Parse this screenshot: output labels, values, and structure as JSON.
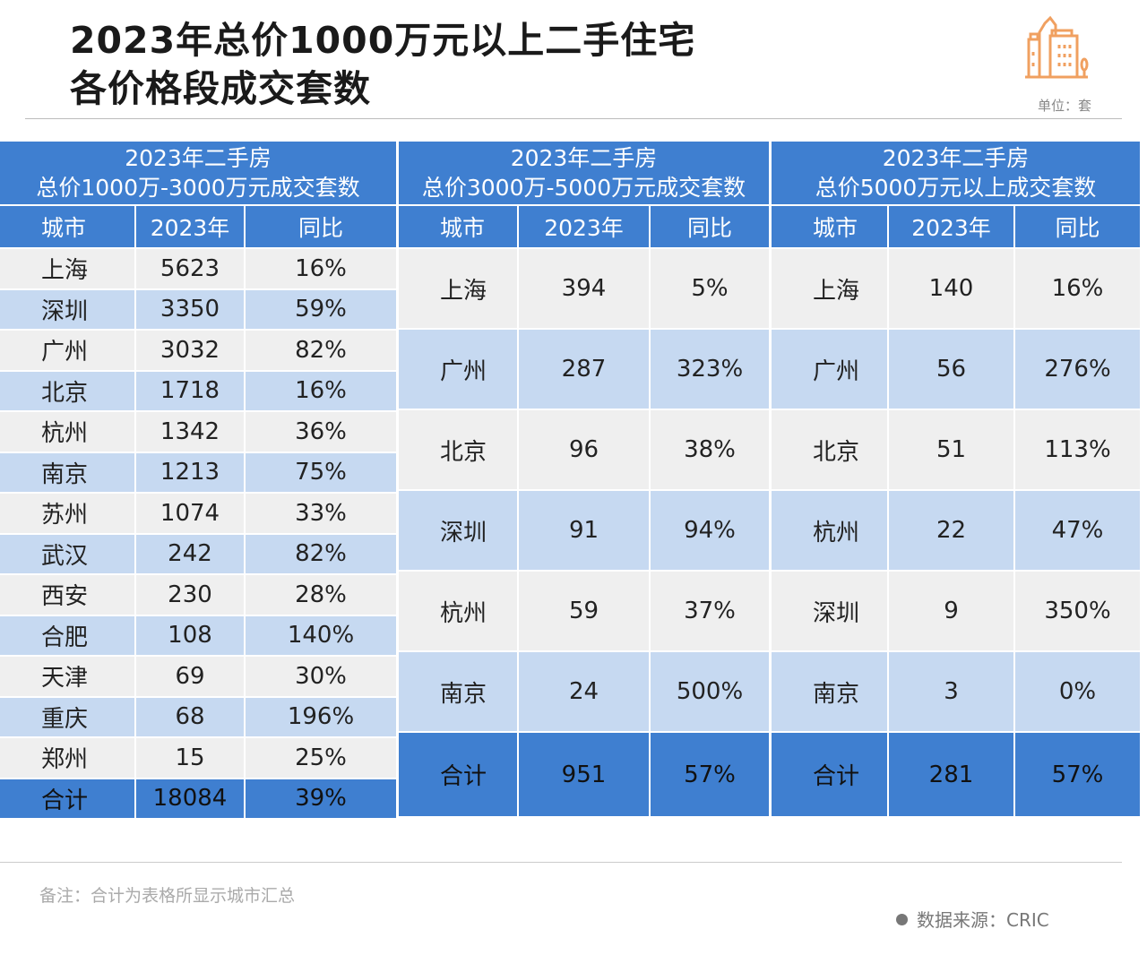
{
  "title_line1": "2023年总价1000万元以上二手住宅",
  "title_line2": "各价格段成交套数",
  "unit": "单位：套",
  "logo_icon": "city-buildings-icon",
  "colors": {
    "header": "#3f7fd0",
    "band_light": "#c6d9f1",
    "band_gray": "#efefef",
    "logo": "#f0a060"
  },
  "columns": [
    "城市",
    "2023年",
    "同比"
  ],
  "tables": [
    {
      "caption1": "2023年二手房",
      "caption2": "总价1000万-3000万元成交套数",
      "rows": [
        [
          "上海",
          "5623",
          "16%"
        ],
        [
          "深圳",
          "3350",
          "59%"
        ],
        [
          "广州",
          "3032",
          "82%"
        ],
        [
          "北京",
          "1718",
          "16%"
        ],
        [
          "杭州",
          "1342",
          "36%"
        ],
        [
          "南京",
          "1213",
          "75%"
        ],
        [
          "苏州",
          "1074",
          "33%"
        ],
        [
          "武汉",
          "242",
          "82%"
        ],
        [
          "西安",
          "230",
          "28%"
        ],
        [
          "合肥",
          "108",
          "140%"
        ],
        [
          "天津",
          "69",
          "30%"
        ],
        [
          "重庆",
          "68",
          "196%"
        ],
        [
          "郑州",
          "15",
          "25%"
        ]
      ],
      "total": [
        "合计",
        "18084",
        "39%"
      ]
    },
    {
      "caption1": "2023年二手房",
      "caption2": "总价3000万-5000万元成交套数",
      "rows": [
        [
          "上海",
          "394",
          "5%"
        ],
        [
          "广州",
          "287",
          "323%"
        ],
        [
          "北京",
          "96",
          "38%"
        ],
        [
          "深圳",
          "91",
          "94%"
        ],
        [
          "杭州",
          "59",
          "37%"
        ],
        [
          "南京",
          "24",
          "500%"
        ]
      ],
      "total": [
        "合计",
        "951",
        "57%"
      ]
    },
    {
      "caption1": "2023年二手房",
      "caption2": "总价5000万元以上成交套数",
      "rows": [
        [
          "上海",
          "140",
          "16%"
        ],
        [
          "广州",
          "56",
          "276%"
        ],
        [
          "北京",
          "51",
          "113%"
        ],
        [
          "杭州",
          "22",
          "47%"
        ],
        [
          "深圳",
          "9",
          "350%"
        ],
        [
          "南京",
          "3",
          "0%"
        ]
      ],
      "total": [
        "合计",
        "281",
        "57%"
      ]
    }
  ],
  "note": "备注：合计为表格所显示城市汇总",
  "source": "数据来源：CRIC"
}
